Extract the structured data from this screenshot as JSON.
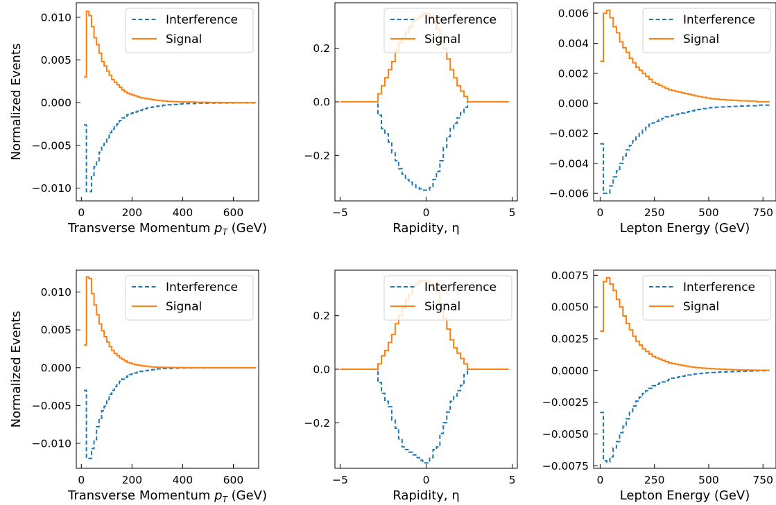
{
  "figure": {
    "ylabel": "Normalized Events",
    "legend": {
      "items": [
        "Interference",
        "Signal"
      ],
      "placement": "upper-right"
    },
    "colors": {
      "interference": "#1f77b4",
      "signal": "#ff7f0e"
    }
  },
  "chart_data": [
    {
      "type": "line",
      "step": true,
      "xlabel": "Transverse Momentum pT (GeV)",
      "xlim": [
        -20,
        700
      ],
      "ylim": [
        -0.0115,
        0.0117
      ],
      "xticks": [
        0,
        200,
        400,
        600
      ],
      "xtick_labels": [
        "0",
        "200",
        "400",
        "600"
      ],
      "yticks": [
        -0.01,
        -0.005,
        0,
        0.005,
        0.01
      ],
      "ytick_labels": [
        "−0.010",
        "−0.005",
        "0.000",
        "0.005",
        "0.010"
      ],
      "bin_edges": [
        10,
        20,
        30,
        40,
        50,
        60,
        70,
        80,
        90,
        100,
        110,
        120,
        130,
        140,
        150,
        160,
        170,
        180,
        190,
        200,
        210,
        220,
        230,
        240,
        250,
        260,
        270,
        280,
        290,
        300,
        320,
        340,
        360,
        380,
        400,
        450,
        500,
        550,
        600,
        690
      ],
      "series": [
        {
          "name": "Interference",
          "values": [
            -0.0026,
            -0.0104,
            -0.0104,
            -0.0085,
            -0.0075,
            -0.0068,
            -0.0058,
            -0.005,
            -0.0046,
            -0.0041,
            -0.0035,
            -0.0031,
            -0.0028,
            -0.0025,
            -0.0021,
            -0.0018,
            -0.0016,
            -0.0014,
            -0.0013,
            -0.0012,
            -0.0011,
            -0.001,
            -0.0009,
            -0.0008,
            -0.0007,
            -0.0006,
            -0.00055,
            -0.0005,
            -0.00045,
            -0.0004,
            -0.0003,
            -0.00025,
            -0.0002,
            -0.00015,
            -0.0001,
            -5e-05,
            -3e-05,
            -2e-05,
            -1e-05
          ]
        },
        {
          "name": "Signal",
          "values": [
            0.003,
            0.0107,
            0.0102,
            0.0089,
            0.0076,
            0.0068,
            0.0058,
            0.0048,
            0.0043,
            0.0037,
            0.0032,
            0.0027,
            0.0024,
            0.0021,
            0.0018,
            0.0015,
            0.0013,
            0.0011,
            0.001,
            0.0009,
            0.0008,
            0.0007,
            0.0006,
            0.00055,
            0.0005,
            0.00045,
            0.0004,
            0.00035,
            0.0003,
            0.00025,
            0.0002,
            0.00015,
            0.00012,
            0.0001,
            8e-05,
            5e-05,
            3e-05,
            2e-05,
            1e-05
          ]
        }
      ]
    },
    {
      "type": "line",
      "step": true,
      "xlabel": "Rapidity, η",
      "xlim": [
        -5.3,
        5.3
      ],
      "ylim": [
        -0.37,
        0.37
      ],
      "xticks": [
        -5,
        0,
        5
      ],
      "xtick_labels": [
        "−5",
        "0",
        "5"
      ],
      "yticks": [
        -0.2,
        0,
        0.2
      ],
      "ytick_labels": [
        "−0.2",
        "0.0",
        "0.2"
      ],
      "bin_edges": [
        -5,
        -2.8,
        -2.6,
        -2.4,
        -2.2,
        -2,
        -1.8,
        -1.6,
        -1.4,
        -1.2,
        -1,
        -0.8,
        -0.6,
        -0.4,
        -0.2,
        0,
        0.2,
        0.4,
        0.6,
        0.8,
        1,
        1.2,
        1.4,
        1.6,
        1.8,
        2,
        2.2,
        2.4,
        4.8
      ],
      "series": [
        {
          "name": "Interference",
          "values": [
            0,
            -0.05,
            -0.1,
            -0.12,
            -0.15,
            -0.19,
            -0.22,
            -0.25,
            -0.27,
            -0.29,
            -0.3,
            -0.31,
            -0.32,
            -0.325,
            -0.33,
            -0.33,
            -0.32,
            -0.29,
            -0.26,
            -0.22,
            -0.17,
            -0.13,
            -0.1,
            -0.08,
            -0.06,
            -0.04,
            -0.02,
            0
          ]
        },
        {
          "name": "Signal",
          "values": [
            0,
            0.03,
            0.06,
            0.09,
            0.12,
            0.15,
            0.19,
            0.22,
            0.24,
            0.26,
            0.28,
            0.3,
            0.31,
            0.32,
            0.33,
            0.33,
            0.32,
            0.3,
            0.27,
            0.23,
            0.2,
            0.16,
            0.12,
            0.09,
            0.06,
            0.04,
            0.02,
            0
          ]
        }
      ]
    },
    {
      "type": "line",
      "step": true,
      "xlabel": "Lepton Energy (GeV)",
      "xlim": [
        -30,
        810
      ],
      "ylim": [
        -0.0065,
        0.0067
      ],
      "xticks": [
        0,
        250,
        500,
        750
      ],
      "xtick_labels": [
        "0",
        "250",
        "500",
        "750"
      ],
      "yticks": [
        -0.006,
        -0.004,
        -0.002,
        0,
        0.002,
        0.004,
        0.006
      ],
      "ytick_labels": [
        "−0.006",
        "−0.004",
        "−0.002",
        "0.000",
        "0.002",
        "0.004",
        "0.006"
      ],
      "bin_edges": [
        0,
        15,
        30,
        45,
        60,
        75,
        90,
        105,
        120,
        135,
        150,
        165,
        180,
        195,
        210,
        225,
        240,
        255,
        270,
        285,
        300,
        315,
        330,
        345,
        360,
        375,
        390,
        405,
        420,
        435,
        450,
        470,
        490,
        510,
        530,
        550,
        580,
        610,
        640,
        680,
        720,
        780
      ],
      "series": [
        {
          "name": "Interference",
          "values": [
            -0.0027,
            -0.006,
            -0.006,
            -0.0055,
            -0.0049,
            -0.0045,
            -0.004,
            -0.0035,
            -0.0031,
            -0.0028,
            -0.0025,
            -0.0022,
            -0.002,
            -0.0018,
            -0.0016,
            -0.0014,
            -0.0013,
            -0.0012,
            -0.0011,
            -0.001,
            -0.0009,
            -0.00085,
            -0.0008,
            -0.00075,
            -0.0007,
            -0.00065,
            -0.0006,
            -0.00055,
            -0.0005,
            -0.00045,
            -0.0004,
            -0.00035,
            -0.0003,
            -0.00028,
            -0.00026,
            -0.00024,
            -0.00022,
            -0.0002,
            -0.00018,
            -0.00016,
            -0.00012
          ]
        },
        {
          "name": "Signal",
          "values": [
            0.0028,
            0.006,
            0.0062,
            0.0057,
            0.0051,
            0.0047,
            0.0041,
            0.0037,
            0.0034,
            0.003,
            0.0027,
            0.0024,
            0.0022,
            0.002,
            0.0018,
            0.0016,
            0.0014,
            0.0013,
            0.0012,
            0.0011,
            0.001,
            0.0009,
            0.00085,
            0.0008,
            0.00075,
            0.0007,
            0.00065,
            0.0006,
            0.00055,
            0.0005,
            0.00045,
            0.0004,
            0.00035,
            0.0003,
            0.00028,
            0.00025,
            0.00022,
            0.0002,
            0.00017,
            0.00015,
            0.0001
          ]
        }
      ]
    },
    {
      "type": "line",
      "step": true,
      "xlabel": "Transverse Momentum pT (GeV)",
      "xlim": [
        -20,
        700
      ],
      "ylim": [
        -0.0133,
        0.0129
      ],
      "xticks": [
        0,
        200,
        400,
        600
      ],
      "xtick_labels": [
        "0",
        "200",
        "400",
        "600"
      ],
      "yticks": [
        -0.01,
        -0.005,
        0,
        0.005,
        0.01
      ],
      "ytick_labels": [
        "−0.010",
        "−0.005",
        "0.000",
        "0.005",
        "0.010"
      ],
      "bin_edges": [
        10,
        20,
        30,
        40,
        50,
        60,
        70,
        80,
        90,
        100,
        110,
        120,
        130,
        140,
        150,
        160,
        170,
        180,
        190,
        200,
        210,
        220,
        230,
        240,
        250,
        260,
        270,
        280,
        290,
        300,
        320,
        340,
        360,
        380,
        400,
        450,
        500,
        550,
        600,
        690
      ],
      "series": [
        {
          "name": "Interference",
          "values": [
            -0.003,
            -0.012,
            -0.012,
            -0.0107,
            -0.0095,
            -0.0078,
            -0.0067,
            -0.0057,
            -0.0051,
            -0.0042,
            -0.0035,
            -0.003,
            -0.0025,
            -0.0021,
            -0.0018,
            -0.0015,
            -0.0013,
            -0.0011,
            -0.0009,
            -0.0008,
            -0.0007,
            -0.0006,
            -0.0005,
            -0.00045,
            -0.0004,
            -0.00035,
            -0.0003,
            -0.00025,
            -0.0002,
            -0.00015,
            -0.0001,
            -8e-05,
            -6e-05,
            -4e-05,
            -3e-05,
            -2e-05,
            -1e-05,
            -1e-05,
            0
          ]
        },
        {
          "name": "Signal",
          "values": [
            0.003,
            0.012,
            0.0118,
            0.0098,
            0.0083,
            0.007,
            0.0058,
            0.0049,
            0.0041,
            0.0034,
            0.0028,
            0.0023,
            0.0019,
            0.0016,
            0.0013,
            0.0011,
            0.0009,
            0.0007,
            0.0006,
            0.0005,
            0.0004,
            0.00035,
            0.0003,
            0.00025,
            0.0002,
            0.00015,
            0.00012,
            0.0001,
            8e-05,
            6e-05,
            5e-05,
            4e-05,
            3e-05,
            2e-05,
            1e-05,
            1e-05,
            0,
            0,
            0
          ]
        }
      ]
    },
    {
      "type": "line",
      "step": true,
      "xlabel": "Rapidity, η",
      "xlim": [
        -5.3,
        5.3
      ],
      "ylim": [
        -0.37,
        0.37
      ],
      "xticks": [
        -5,
        0,
        5
      ],
      "xtick_labels": [
        "−5",
        "0",
        "5"
      ],
      "yticks": [
        -0.2,
        0,
        0.2
      ],
      "ytick_labels": [
        "−0.2",
        "0.0",
        "0.2"
      ],
      "bin_edges": [
        -5,
        -2.8,
        -2.6,
        -2.4,
        -2.2,
        -2,
        -1.8,
        -1.6,
        -1.4,
        -1.2,
        -1,
        -0.8,
        -0.6,
        -0.4,
        -0.2,
        0,
        0.2,
        0.4,
        0.6,
        0.8,
        1,
        1.2,
        1.4,
        1.6,
        1.8,
        2,
        2.2,
        2.4,
        4.8
      ],
      "series": [
        {
          "name": "Interference",
          "values": [
            0,
            -0.05,
            -0.09,
            -0.12,
            -0.14,
            -0.19,
            -0.22,
            -0.26,
            -0.29,
            -0.3,
            -0.31,
            -0.32,
            -0.33,
            -0.34,
            -0.35,
            -0.35,
            -0.33,
            -0.3,
            -0.29,
            -0.24,
            -0.2,
            -0.16,
            -0.12,
            -0.1,
            -0.08,
            -0.06,
            -0.02,
            0
          ]
        },
        {
          "name": "Signal",
          "values": [
            0,
            0.02,
            0.05,
            0.07,
            0.1,
            0.13,
            0.17,
            0.2,
            0.23,
            0.26,
            0.28,
            0.31,
            0.32,
            0.33,
            0.33,
            0.33,
            0.32,
            0.3,
            0.29,
            0.23,
            0.19,
            0.15,
            0.11,
            0.08,
            0.06,
            0.04,
            0.02,
            0
          ]
        }
      ]
    },
    {
      "type": "line",
      "step": true,
      "xlabel": "Lepton Energy (GeV)",
      "xlim": [
        -30,
        810
      ],
      "ylim": [
        -0.0077,
        0.0079
      ],
      "xticks": [
        0,
        250,
        500,
        750
      ],
      "xtick_labels": [
        "0",
        "250",
        "500",
        "750"
      ],
      "yticks": [
        -0.0075,
        -0.005,
        -0.0025,
        0,
        0.0025,
        0.005,
        0.0075
      ],
      "ytick_labels": [
        "−0.0075",
        "−0.0050",
        "−0.0025",
        "0.0000",
        "0.0025",
        "0.0050",
        "0.0075"
      ],
      "bin_edges": [
        0,
        15,
        30,
        45,
        60,
        75,
        90,
        105,
        120,
        135,
        150,
        165,
        180,
        195,
        210,
        225,
        240,
        255,
        270,
        285,
        300,
        315,
        330,
        345,
        360,
        375,
        390,
        405,
        420,
        435,
        450,
        470,
        490,
        510,
        530,
        550,
        580,
        610,
        640,
        680,
        720,
        780
      ],
      "series": [
        {
          "name": "Interference",
          "values": [
            -0.0033,
            -0.0071,
            -0.0072,
            -0.0068,
            -0.0061,
            -0.0056,
            -0.0049,
            -0.0044,
            -0.0038,
            -0.0033,
            -0.0028,
            -0.0024,
            -0.0021,
            -0.0018,
            -0.0016,
            -0.0014,
            -0.0012,
            -0.0011,
            -0.001,
            -0.0009,
            -0.0008,
            -0.0007,
            -0.0006,
            -0.00055,
            -0.0005,
            -0.00045,
            -0.0004,
            -0.00035,
            -0.0003,
            -0.00027,
            -0.00024,
            -0.00021,
            -0.00018,
            -0.00016,
            -0.00014,
            -0.00012,
            -0.0001,
            -8e-05,
            -6e-05,
            -4e-05,
            -2e-05
          ]
        },
        {
          "name": "Signal",
          "values": [
            0.0031,
            0.007,
            0.0073,
            0.0068,
            0.0063,
            0.0056,
            0.005,
            0.0043,
            0.0037,
            0.0032,
            0.0027,
            0.0023,
            0.002,
            0.0017,
            0.0015,
            0.0013,
            0.0011,
            0.001,
            0.0009,
            0.0008,
            0.0007,
            0.0006,
            0.00055,
            0.0005,
            0.00045,
            0.0004,
            0.00035,
            0.0003,
            0.00027,
            0.00024,
            0.00021,
            0.00018,
            0.00016,
            0.00014,
            0.00012,
            0.0001,
            8e-05,
            6e-05,
            4e-05,
            3e-05,
            2e-05
          ]
        }
      ]
    }
  ]
}
